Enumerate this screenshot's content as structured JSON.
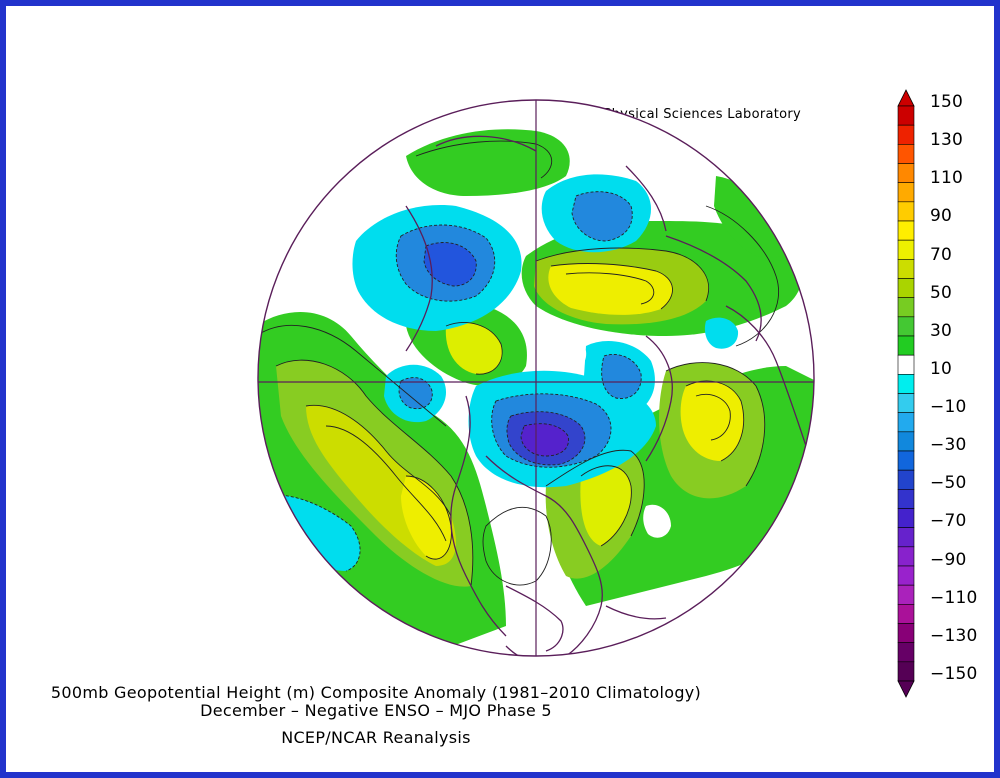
{
  "header": {
    "credit": "NOAA Physical Sciences Laboratory"
  },
  "titles": {
    "line1": "500mb Geopotential Height (m) Composite Anomaly (1981–2010 Climatology)",
    "line2": "December – Negative ENSO – MJO Phase 5",
    "line3": "NCEP/NCAR Reanalysis"
  },
  "colorbar": {
    "labels": [
      "150",
      "130",
      "110",
      "90",
      "70",
      "50",
      "30",
      "10",
      "−10",
      "−30",
      "−50",
      "−70",
      "−90",
      "−110",
      "−130",
      "−150"
    ],
    "colors": [
      "#cc0000",
      "#ee2200",
      "#ff5500",
      "#ff8800",
      "#ffaa00",
      "#ffcc00",
      "#ffee00",
      "#eef000",
      "#ccdd00",
      "#aad400",
      "#77cc22",
      "#44c833",
      "#22cc22",
      "#ffffff",
      "#00eeee",
      "#33ccee",
      "#22aaee",
      "#1188dd",
      "#1166dd",
      "#2244cc",
      "#3333cc",
      "#4422cc",
      "#6622cc",
      "#8822cc",
      "#9922cc",
      "#aa22bb",
      "#aa1199",
      "#880077",
      "#660066",
      "#550055"
    ]
  },
  "map": {
    "projection": "north-polar-stereographic",
    "field": "500mb height anomaly",
    "contour_interval": 10,
    "features": [
      {
        "name": "pacific-positive-anomaly",
        "value": 80,
        "color": "#ddee00"
      },
      {
        "name": "north-atlantic-negative-anomaly",
        "value": -80,
        "color": "#4422cc"
      },
      {
        "name": "east-us-positive-anomaly",
        "value": 70,
        "color": "#ffdd00"
      },
      {
        "name": "europe-positive-anomaly",
        "value": 70,
        "color": "#ffdd00"
      },
      {
        "name": "siberia-positive-anomaly",
        "value": 80,
        "color": "#ffdd00"
      },
      {
        "name": "west-siberia-negative-anomaly",
        "value": -60,
        "color": "#2255dd"
      },
      {
        "name": "arctic-negative-anomaly",
        "value": -50,
        "color": "#1188dd"
      }
    ]
  }
}
